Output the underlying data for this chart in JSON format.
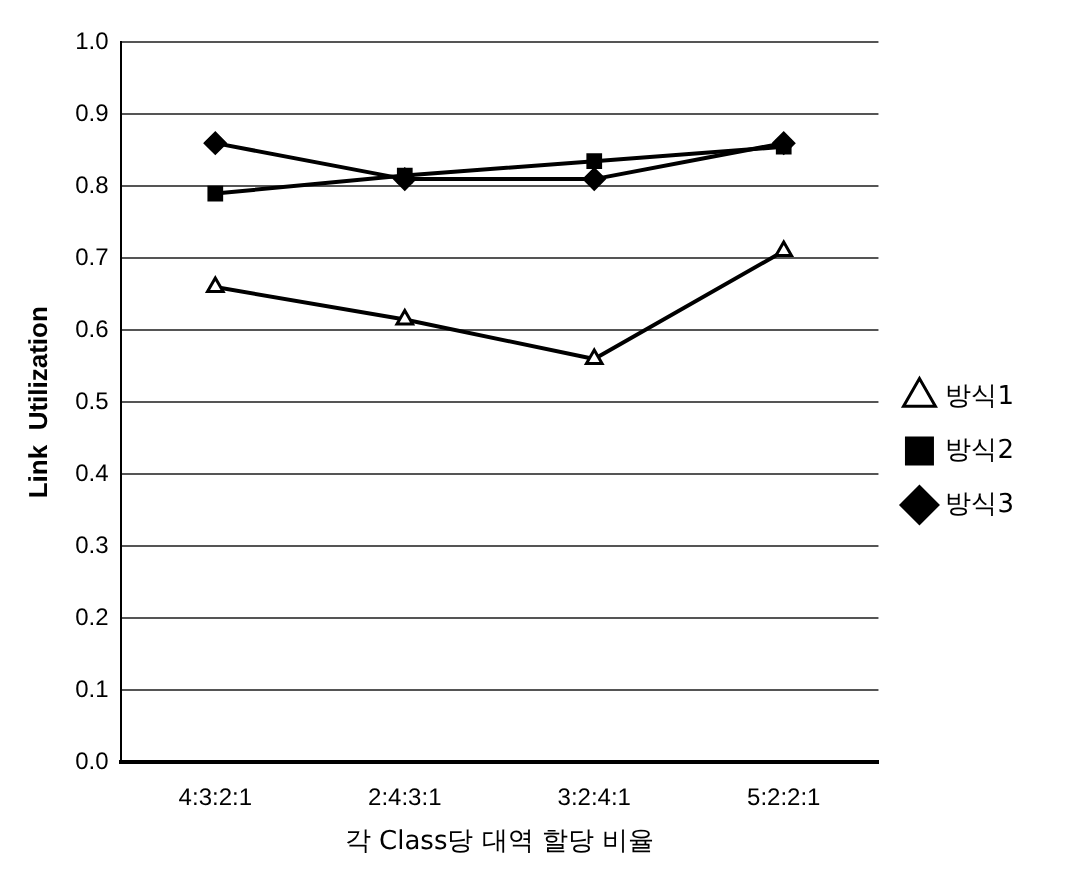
{
  "chart_data": {
    "type": "line",
    "xlabel": "각 Class당 대역 할당 비율",
    "ylabel": "Link  Utilization",
    "categories": [
      "4:3:2:1",
      "2:4:3:1",
      "3:2:4:1",
      "5:2:2:1"
    ],
    "series": [
      {
        "name": "방식3",
        "color": "#000000",
        "marker": "diamond",
        "values": [
          0.86,
          0.81,
          0.81,
          0.86
        ]
      },
      {
        "name": "방식2",
        "color": "#000000",
        "marker": "square",
        "values": [
          0.79,
          0.815,
          0.835,
          0.855
        ]
      },
      {
        "name": "방식1",
        "color": "#000000",
        "marker": "triangle",
        "values": [
          0.66,
          0.615,
          0.56,
          0.71
        ]
      }
    ],
    "ylim": [
      0,
      1
    ],
    "yticks": [
      {
        "value": 0,
        "label": "0.0"
      },
      {
        "value": 0.1,
        "label": "0.1"
      },
      {
        "value": 0.2,
        "label": "0.2"
      },
      {
        "value": 0.3,
        "label": "0.3"
      },
      {
        "value": 0.4,
        "label": "0.4"
      },
      {
        "value": 0.5,
        "label": "0.5"
      },
      {
        "value": 0.6,
        "label": "0.6"
      },
      {
        "value": 0.7,
        "label": "0.7"
      },
      {
        "value": 0.8,
        "label": "0.8"
      },
      {
        "value": 0.9,
        "label": "0.9"
      },
      {
        "value": 1,
        "label": "1.0"
      }
    ],
    "grid": "y",
    "legend": "right",
    "line_style": "solid"
  }
}
